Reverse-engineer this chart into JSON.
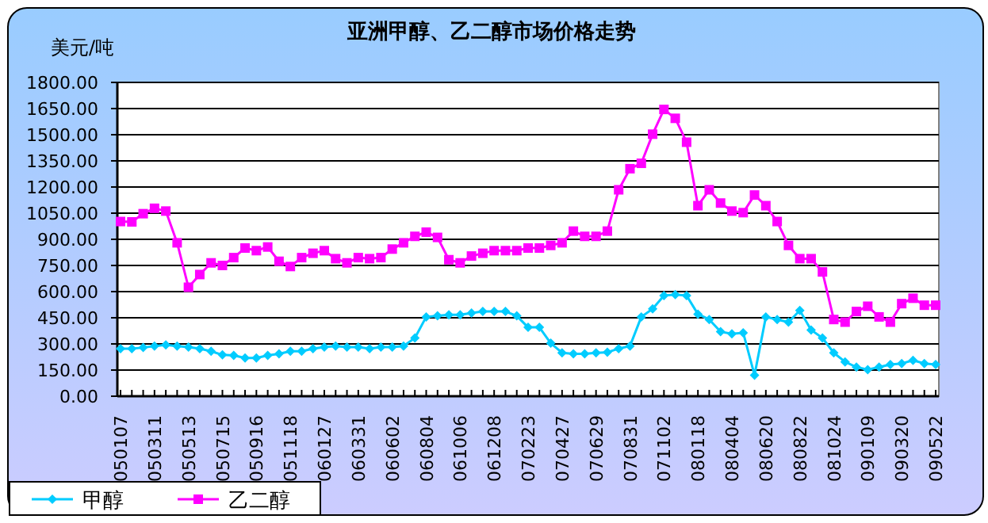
{
  "chart_data": {
    "type": "line",
    "title": "亚洲甲醇、乙二醇市场价格走势",
    "ylabel": "美元/吨",
    "categories": [
      "050107",
      null,
      null,
      "050311",
      null,
      null,
      "050513",
      null,
      null,
      "050715",
      null,
      null,
      "050916",
      null,
      null,
      "051118",
      null,
      null,
      "060127",
      null,
      null,
      "060331",
      null,
      null,
      "060602",
      null,
      null,
      "060804",
      null,
      null,
      "061006",
      null,
      null,
      "061208",
      null,
      null,
      "070223",
      null,
      null,
      "070427",
      null,
      null,
      "070629",
      null,
      null,
      "070831",
      null,
      null,
      "071102",
      null,
      null,
      "080118",
      null,
      null,
      "080404",
      null,
      null,
      "080620",
      null,
      null,
      "080822",
      null,
      null,
      "081024",
      null,
      null,
      "090109",
      null,
      null,
      "090320",
      null,
      null,
      "090522"
    ],
    "series": [
      {
        "name": "甲醇",
        "color": "#00ccff",
        "marker": "diamond",
        "values": [
          273,
          273,
          279,
          288,
          294,
          288,
          282,
          273,
          258,
          237,
          234,
          219,
          219,
          234,
          243,
          258,
          258,
          273,
          282,
          288,
          282,
          282,
          273,
          282,
          282,
          288,
          334,
          455,
          461,
          467,
          467,
          477,
          486,
          486,
          486,
          461,
          395,
          395,
          304,
          249,
          243,
          243,
          249,
          252,
          273,
          288,
          455,
          501,
          577,
          583,
          577,
          471,
          440,
          370,
          358,
          364,
          121,
          455,
          440,
          425,
          492,
          380,
          334,
          249,
          197,
          167,
          152,
          167,
          182,
          188,
          206,
          188,
          182
        ]
      },
      {
        "name": "乙二醇",
        "color": "#ff00ff",
        "marker": "square",
        "values": [
          1002,
          1000,
          1047,
          1078,
          1062,
          880,
          625,
          698,
          765,
          750,
          795,
          850,
          835,
          856,
          774,
          744,
          795,
          820,
          835,
          789,
          765,
          795,
          789,
          795,
          844,
          880,
          917,
          941,
          911,
          783,
          765,
          804,
          820,
          835,
          835,
          835,
          850,
          850,
          865,
          880,
          947,
          917,
          917,
          947,
          1184,
          1305,
          1336,
          1503,
          1645,
          1594,
          1457,
          1093,
          1184,
          1108,
          1062,
          1053,
          1154,
          1093,
          1002,
          865,
          789,
          789,
          713,
          440,
          425,
          486,
          516,
          455,
          425,
          531,
          562,
          522,
          522
        ]
      }
    ],
    "ylim": [
      0,
      1800
    ],
    "yticks": [
      {
        "value": 0,
        "label": "0.00"
      },
      {
        "value": 150,
        "label": "150.00"
      },
      {
        "value": 300,
        "label": "300.00"
      },
      {
        "value": 450,
        "label": "450.00"
      },
      {
        "value": 600,
        "label": "600.00"
      },
      {
        "value": 750,
        "label": "750.00"
      },
      {
        "value": 900,
        "label": "900.00"
      },
      {
        "value": 1050,
        "label": "1050.00"
      },
      {
        "value": 1200,
        "label": "1200.00"
      },
      {
        "value": 1350,
        "label": "1350.00"
      },
      {
        "value": 1500,
        "label": "1500.00"
      },
      {
        "value": 1650,
        "label": "1650.00"
      },
      {
        "value": 1800,
        "label": "1800.00"
      }
    ],
    "grid": "y",
    "legend": "bottom left"
  }
}
